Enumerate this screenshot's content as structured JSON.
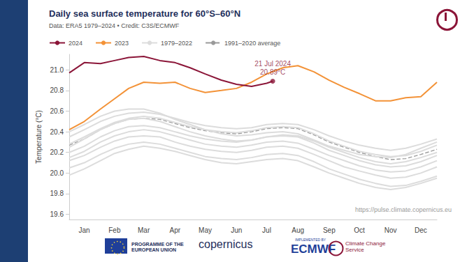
{
  "chart_data": {
    "type": "line",
    "title": "Daily sea surface temperature for 60°S–60°N",
    "subtitle": "Data: ERA5 1979–2024 • Credit: C3S/ECMWF",
    "y_label": "Temperature (°C)",
    "xlim": [
      1,
      366
    ],
    "xticks": [
      {
        "value": 16,
        "label": "Jan"
      },
      {
        "value": 46,
        "label": "Feb"
      },
      {
        "value": 75,
        "label": "Mar"
      },
      {
        "value": 106,
        "label": "Apr"
      },
      {
        "value": 136,
        "label": "May"
      },
      {
        "value": 167,
        "label": "Jun"
      },
      {
        "value": 197,
        "label": "Jul"
      },
      {
        "value": 228,
        "label": "Aug"
      },
      {
        "value": 259,
        "label": "Sep"
      },
      {
        "value": 289,
        "label": "Oct"
      },
      {
        "value": 320,
        "label": "Nov"
      },
      {
        "value": 350,
        "label": "Dec"
      }
    ],
    "ylim": [
      19.55,
      21.15
    ],
    "yticks": [
      {
        "value": 19.6,
        "label": "19.6"
      },
      {
        "value": 19.8,
        "label": "19.8"
      },
      {
        "value": 20.0,
        "label": "20.0"
      },
      {
        "value": 20.2,
        "label": "20.2"
      },
      {
        "value": 20.4,
        "label": "20.4"
      },
      {
        "value": 20.6,
        "label": "20.6"
      },
      {
        "value": 20.8,
        "label": "20.8"
      },
      {
        "value": 21.0,
        "label": "21.0"
      }
    ],
    "grid": false,
    "legend": "top-left",
    "series": [
      {
        "name": "2024",
        "color": "#8b1538",
        "line_style": "solid",
        "x": [
          1,
          16,
          32,
          46,
          60,
          75,
          91,
          106,
          121,
          136,
          152,
          167,
          182,
          197,
          203
        ],
        "values": [
          20.97,
          21.07,
          21.06,
          21.09,
          21.12,
          21.13,
          21.09,
          21.07,
          21.02,
          20.96,
          20.9,
          20.86,
          20.84,
          20.87,
          20.89
        ]
      },
      {
        "name": "2023",
        "color": "#f39237",
        "line_style": "solid",
        "x": [
          1,
          16,
          32,
          46,
          60,
          75,
          91,
          106,
          121,
          136,
          152,
          167,
          182,
          197,
          213,
          228,
          244,
          259,
          274,
          289,
          305,
          320,
          335,
          350,
          366
        ],
        "values": [
          20.42,
          20.5,
          20.62,
          20.72,
          20.82,
          20.88,
          20.87,
          20.88,
          20.82,
          20.78,
          20.8,
          20.82,
          20.88,
          20.96,
          21.02,
          21.04,
          20.98,
          20.9,
          20.83,
          20.77,
          20.7,
          20.7,
          20.73,
          20.74,
          20.88
        ]
      },
      {
        "name": "1979–2022",
        "color": "#dcdcdc",
        "line_style": "solid",
        "x": [
          1,
          16,
          32,
          46,
          60,
          75,
          91,
          106,
          121,
          136,
          152,
          167,
          182,
          197,
          213,
          228,
          244,
          259,
          274,
          289,
          305,
          320,
          335,
          350,
          366
        ],
        "values": [
          20.05,
          20.1,
          20.18,
          20.24,
          20.28,
          20.3,
          20.28,
          20.24,
          20.2,
          20.16,
          20.14,
          20.13,
          20.15,
          20.18,
          20.19,
          20.17,
          20.11,
          20.04,
          19.99,
          19.94,
          19.9,
          19.87,
          19.88,
          19.92,
          19.97
        ]
      },
      {
        "name": "1979–2022",
        "color": "#dcdcdc",
        "line_style": "solid",
        "x": [
          1,
          16,
          32,
          46,
          60,
          75,
          91,
          106,
          121,
          136,
          152,
          167,
          182,
          197,
          213,
          228,
          244,
          259,
          274,
          289,
          305,
          320,
          335,
          350,
          366
        ],
        "values": [
          20.12,
          20.17,
          20.25,
          20.31,
          20.35,
          20.36,
          20.35,
          20.3,
          20.26,
          20.23,
          20.21,
          20.2,
          20.22,
          20.25,
          20.26,
          20.24,
          20.18,
          20.12,
          20.06,
          20.02,
          19.98,
          19.95,
          19.96,
          20.0,
          20.06
        ]
      },
      {
        "name": "1979–2022",
        "color": "#dcdcdc",
        "line_style": "solid",
        "x": [
          1,
          16,
          32,
          46,
          60,
          75,
          91,
          106,
          121,
          136,
          152,
          167,
          182,
          197,
          213,
          228,
          244,
          259,
          274,
          289,
          305,
          320,
          335,
          350,
          366
        ],
        "values": [
          19.98,
          20.04,
          20.12,
          20.19,
          20.23,
          20.26,
          20.24,
          20.21,
          20.17,
          20.13,
          20.1,
          20.09,
          20.11,
          20.13,
          20.14,
          20.12,
          20.06,
          20.0,
          19.95,
          19.9,
          19.86,
          19.84,
          19.86,
          19.9,
          19.95
        ]
      },
      {
        "name": "1979–2022",
        "color": "#dcdcdc",
        "line_style": "solid",
        "x": [
          1,
          16,
          32,
          46,
          60,
          75,
          91,
          106,
          121,
          136,
          152,
          167,
          182,
          197,
          213,
          228,
          244,
          259,
          274,
          289,
          305,
          320,
          335,
          350,
          366
        ],
        "values": [
          20.2,
          20.26,
          20.35,
          20.41,
          20.45,
          20.46,
          20.44,
          20.4,
          20.36,
          20.33,
          20.31,
          20.3,
          20.32,
          20.35,
          20.36,
          20.35,
          20.29,
          20.22,
          20.17,
          20.12,
          20.08,
          20.06,
          20.07,
          20.11,
          20.17
        ]
      },
      {
        "name": "1979–2022",
        "color": "#dcdcdc",
        "line_style": "solid",
        "x": [
          1,
          16,
          32,
          46,
          60,
          75,
          91,
          106,
          121,
          136,
          152,
          167,
          182,
          197,
          213,
          228,
          244,
          259,
          274,
          289,
          305,
          320,
          335,
          350,
          366
        ],
        "values": [
          20.28,
          20.35,
          20.43,
          20.49,
          20.53,
          20.55,
          20.53,
          20.49,
          20.45,
          20.42,
          20.4,
          20.39,
          20.41,
          20.44,
          20.45,
          20.44,
          20.38,
          20.31,
          20.26,
          20.21,
          20.18,
          20.16,
          20.17,
          20.21,
          20.27
        ]
      },
      {
        "name": "1979–2022",
        "color": "#dcdcdc",
        "line_style": "solid",
        "x": [
          1,
          16,
          32,
          46,
          60,
          75,
          91,
          106,
          121,
          136,
          152,
          167,
          182,
          197,
          213,
          228,
          244,
          259,
          274,
          289,
          305,
          320,
          335,
          350,
          366
        ],
        "values": [
          20.4,
          20.47,
          20.55,
          20.6,
          20.62,
          20.62,
          20.58,
          20.52,
          20.47,
          20.42,
          20.38,
          20.36,
          20.37,
          20.39,
          20.4,
          20.38,
          20.32,
          20.26,
          20.22,
          20.18,
          20.16,
          20.15,
          20.18,
          20.24,
          20.3
        ]
      },
      {
        "name": "1979–2022",
        "color": "#dcdcdc",
        "line_style": "solid",
        "x": [
          1,
          16,
          32,
          46,
          60,
          75,
          91,
          106,
          121,
          136,
          152,
          167,
          182,
          197,
          213,
          228,
          244,
          259,
          274,
          289,
          305,
          320,
          335,
          350,
          366
        ],
        "values": [
          20.35,
          20.42,
          20.5,
          20.55,
          20.58,
          20.59,
          20.57,
          20.53,
          20.49,
          20.46,
          20.44,
          20.43,
          20.44,
          20.47,
          20.48,
          20.47,
          20.42,
          20.36,
          20.31,
          20.27,
          20.24,
          20.22,
          20.24,
          20.28,
          20.33
        ]
      },
      {
        "name": "1979–2022",
        "color": "#dcdcdc",
        "line_style": "solid",
        "x": [
          1,
          16,
          32,
          46,
          60,
          75,
          91,
          106,
          121,
          136,
          152,
          167,
          182,
          197,
          213,
          228,
          244,
          259,
          274,
          289,
          305,
          320,
          335,
          350,
          366
        ],
        "values": [
          20.15,
          20.21,
          20.3,
          20.36,
          20.4,
          20.42,
          20.4,
          20.36,
          20.32,
          20.28,
          20.26,
          20.25,
          20.27,
          20.3,
          20.31,
          20.29,
          20.23,
          20.17,
          20.12,
          20.07,
          20.03,
          20.01,
          20.02,
          20.06,
          20.12
        ]
      },
      {
        "name": "1979–2022",
        "color": "#dcdcdc",
        "line_style": "solid",
        "x": [
          1,
          16,
          32,
          46,
          60,
          75,
          91,
          106,
          121,
          136,
          152,
          167,
          182,
          197,
          213,
          228,
          244,
          259,
          274,
          289,
          305,
          320,
          335,
          350,
          366
        ],
        "values": [
          20.25,
          20.33,
          20.42,
          20.48,
          20.52,
          20.53,
          20.5,
          20.45,
          20.4,
          20.36,
          20.33,
          20.31,
          20.32,
          20.35,
          20.37,
          20.36,
          20.31,
          20.25,
          20.2,
          20.15,
          20.11,
          20.09,
          20.11,
          20.15,
          20.2
        ]
      },
      {
        "name": "1991–2020 average",
        "color": "#9a9a9a",
        "line_style": "dashed",
        "x": [
          1,
          16,
          32,
          46,
          60,
          75,
          91,
          106,
          121,
          136,
          152,
          167,
          182,
          197,
          213,
          228,
          244,
          259,
          274,
          289,
          305,
          320,
          335,
          350,
          366
        ],
        "values": [
          20.27,
          20.33,
          20.42,
          20.48,
          20.52,
          20.53,
          20.52,
          20.48,
          20.44,
          20.41,
          20.39,
          20.38,
          20.4,
          20.43,
          20.44,
          20.43,
          20.37,
          20.3,
          20.25,
          20.2,
          20.16,
          20.13,
          20.14,
          20.18,
          20.23
        ]
      }
    ],
    "annotation": {
      "x": 203,
      "y": 20.89,
      "date_label": "21 Jul 2024",
      "value_label": "20.89°C",
      "color": "#8b1538"
    },
    "source": "https://pulse.climate.copernicus.eu",
    "footer": [
      "PROGRAMME OF THE EUROPEAN UNION",
      "copernicus",
      "IMPLEMENTED BY",
      "ECMWF",
      "Climate Change Service"
    ]
  }
}
